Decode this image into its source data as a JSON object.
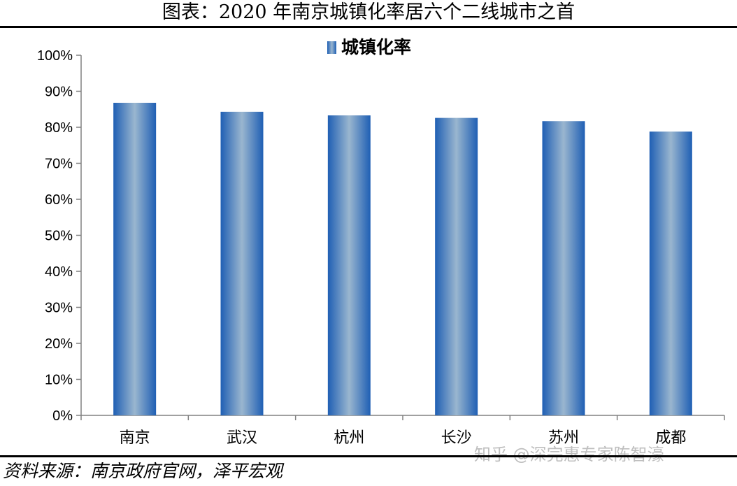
{
  "title": "图表：2020 年南京城镇化率居六个二线城市之首",
  "source": "资料来源：南京政府官网，泽平宏观",
  "watermark": "知乎 @深完惠专家陈智濠",
  "chart_data": {
    "type": "bar",
    "categories": [
      "南京",
      "武汉",
      "杭州",
      "长沙",
      "苏州",
      "成都"
    ],
    "series": [
      {
        "name": "城镇化率",
        "values": [
          86.8,
          84.3,
          83.3,
          82.6,
          81.7,
          78.8
        ]
      }
    ],
    "ylim": [
      0,
      100
    ],
    "yticks": [
      0,
      10,
      20,
      30,
      40,
      50,
      60,
      70,
      80,
      90,
      100
    ],
    "ytick_labels": [
      "0%",
      "10%",
      "20%",
      "30%",
      "40%",
      "50%",
      "60%",
      "70%",
      "80%",
      "90%",
      "100%"
    ],
    "grid": false,
    "legend": "top-center",
    "colors": {
      "bar_edge": "#1f5fb4",
      "bar_center": "#9ab6cf",
      "axis": "#808080"
    }
  }
}
